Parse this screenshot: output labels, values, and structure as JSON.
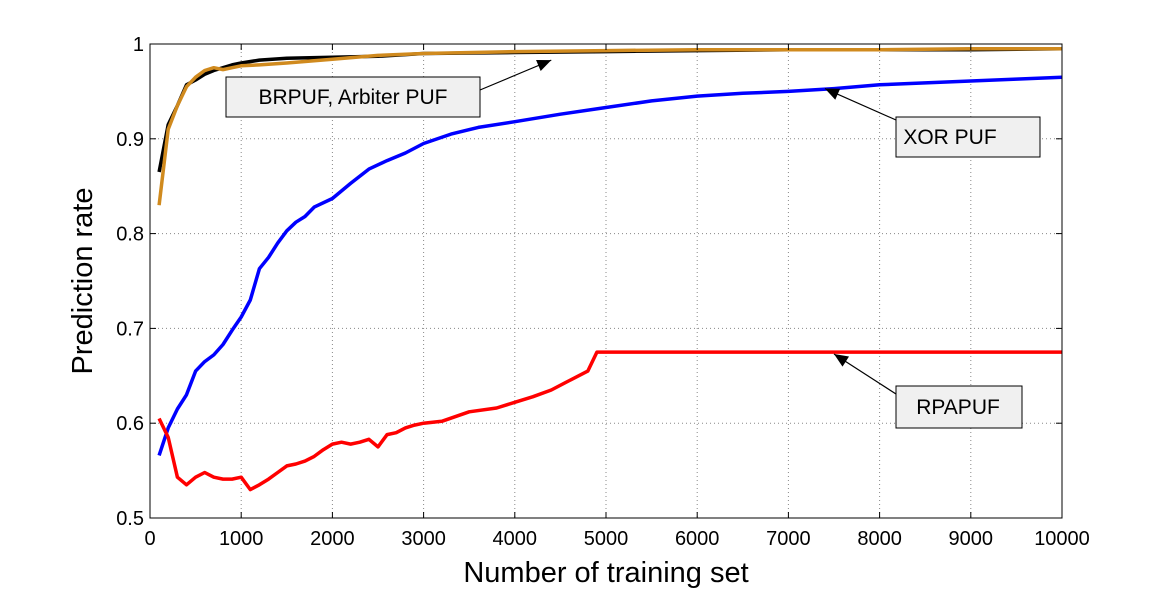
{
  "chart_data": {
    "type": "line",
    "xlabel": "Number of training set",
    "ylabel": "Prediction rate",
    "xlim": [
      0,
      10000
    ],
    "ylim": [
      0.5,
      1
    ],
    "xticks": [
      0,
      1000,
      2000,
      3000,
      4000,
      5000,
      6000,
      7000,
      8000,
      9000,
      10000
    ],
    "yticks": [
      0.5,
      0.6,
      0.7,
      0.8,
      0.9,
      1
    ],
    "ytick_labels": [
      "0.5",
      "0.6",
      "0.7",
      "0.8",
      "0.9",
      "1"
    ],
    "grid": true,
    "series": [
      {
        "color": "#000000",
        "x": [
          100,
          200,
          300,
          400,
          500,
          600,
          700,
          800,
          900,
          1000,
          1200,
          1500,
          2000,
          2500,
          3000,
          4000,
          5000,
          6000,
          7000,
          8000,
          9000,
          10000
        ],
        "values": [
          0.865,
          0.915,
          0.935,
          0.957,
          0.962,
          0.968,
          0.972,
          0.975,
          0.978,
          0.98,
          0.983,
          0.985,
          0.986,
          0.987,
          0.99,
          0.991,
          0.992,
          0.993,
          0.994,
          0.994,
          0.994,
          0.995
        ]
      },
      {
        "color": "#D08A1E",
        "x": [
          100,
          200,
          300,
          400,
          500,
          600,
          700,
          800,
          900,
          1000,
          1200,
          1500,
          2000,
          2500,
          3000,
          4000,
          5000,
          6000,
          7000,
          8000,
          9000,
          10000
        ],
        "values": [
          0.83,
          0.91,
          0.935,
          0.955,
          0.965,
          0.972,
          0.975,
          0.973,
          0.975,
          0.977,
          0.978,
          0.98,
          0.984,
          0.988,
          0.99,
          0.992,
          0.993,
          0.994,
          0.994,
          0.994,
          0.995,
          0.995
        ]
      },
      {
        "color": "#0000FF",
        "x": [
          100,
          200,
          300,
          400,
          500,
          600,
          700,
          800,
          900,
          1000,
          1100,
          1200,
          1300,
          1400,
          1500,
          1600,
          1700,
          1800,
          2000,
          2200,
          2400,
          2600,
          2800,
          3000,
          3300,
          3600,
          4000,
          4500,
          5000,
          5500,
          6000,
          6500,
          7000,
          7500,
          8000,
          8500,
          9000,
          9500,
          10000
        ],
        "values": [
          0.566,
          0.595,
          0.615,
          0.63,
          0.655,
          0.665,
          0.672,
          0.683,
          0.698,
          0.712,
          0.73,
          0.763,
          0.775,
          0.79,
          0.803,
          0.812,
          0.818,
          0.828,
          0.837,
          0.853,
          0.868,
          0.877,
          0.885,
          0.895,
          0.905,
          0.912,
          0.918,
          0.926,
          0.933,
          0.94,
          0.945,
          0.948,
          0.95,
          0.953,
          0.957,
          0.959,
          0.961,
          0.963,
          0.965
        ]
      },
      {
        "color": "#FF0000",
        "x": [
          100,
          200,
          300,
          400,
          500,
          600,
          700,
          800,
          900,
          1000,
          1100,
          1200,
          1300,
          1400,
          1500,
          1600,
          1700,
          1800,
          1900,
          2000,
          2100,
          2200,
          2300,
          2400,
          2500,
          2600,
          2700,
          2800,
          2900,
          3000,
          3200,
          3500,
          3800,
          4000,
          4200,
          4400,
          4600,
          4800,
          4900,
          5000,
          6000,
          7000,
          8000,
          9000,
          10000
        ],
        "values": [
          0.605,
          0.585,
          0.543,
          0.535,
          0.543,
          0.548,
          0.543,
          0.541,
          0.541,
          0.543,
          0.53,
          0.535,
          0.541,
          0.548,
          0.555,
          0.557,
          0.56,
          0.565,
          0.572,
          0.578,
          0.58,
          0.578,
          0.58,
          0.583,
          0.575,
          0.588,
          0.59,
          0.595,
          0.598,
          0.6,
          0.602,
          0.612,
          0.616,
          0.622,
          0.628,
          0.635,
          0.645,
          0.655,
          0.675,
          0.675,
          0.675,
          0.675,
          0.675,
          0.675,
          0.675
        ]
      }
    ],
    "annotations": [
      {
        "text": "BRPUF, Arbiter PUF",
        "points_to": [
          4400,
          0.983
        ]
      },
      {
        "text": "XOR PUF",
        "points_to": [
          7400,
          0.953
        ]
      },
      {
        "text": "RPAPUF",
        "points_to": [
          7500,
          0.673
        ]
      }
    ]
  }
}
